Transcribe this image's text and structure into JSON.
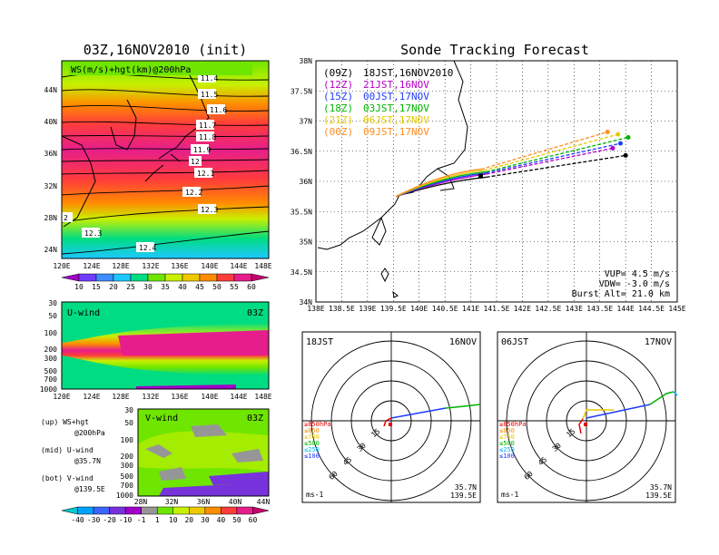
{
  "left_title": "03Z,16NOV2010 (init)",
  "right_title": "Sonde Tracking Forecast",
  "map_panel": {
    "label": "WS(m/s)+hgt(km)@200hPa",
    "lat_labels": [
      "44N",
      "40N",
      "36N",
      "32N",
      "28N",
      "24N"
    ],
    "lon_labels": [
      "120E",
      "124E",
      "128E",
      "132E",
      "136E",
      "140E",
      "144E",
      "148E"
    ],
    "contour_labels": [
      "11.4",
      "11.5",
      "11.6",
      "11.7",
      "11.8",
      "11.9",
      "12",
      "12.1",
      "12.2",
      "12.3",
      "12.3",
      "12.4",
      "2"
    ],
    "colorbar_labels": [
      "10",
      "15",
      "20",
      "25",
      "30",
      "35",
      "40",
      "45",
      "50",
      "55",
      "60"
    ],
    "colorbar_colors": [
      "#a000c8",
      "#6e3cff",
      "#3c8cff",
      "#1ec8ff",
      "#00dc82",
      "#6ee600",
      "#c8f000",
      "#f0c800",
      "#ff8c00",
      "#ff3c3c",
      "#e61e8c",
      "#c8006e"
    ]
  },
  "uwind_panel": {
    "label": "U-wind",
    "time": "03Z",
    "pressure_labels": [
      "30",
      "50",
      "100",
      "200",
      "300",
      "500",
      "700",
      "1000"
    ],
    "lon_labels": [
      "120E",
      "124E",
      "128E",
      "132E",
      "136E",
      "140E",
      "144E",
      "148E"
    ]
  },
  "vwind_panel": {
    "label": "V-wind",
    "time": "03Z",
    "pressure_labels": [
      "30",
      "50",
      "100",
      "200",
      "300",
      "500",
      "700",
      "1000"
    ],
    "lat_labels": [
      "28N",
      "32N",
      "36N",
      "40N",
      "44N"
    ]
  },
  "notes": [
    {
      "a": "(up) WS+hgt",
      "b": "@200hPa"
    },
    {
      "a": "(mid) U-wind",
      "b": "@35.7N"
    },
    {
      "a": "(bot) V-wind",
      "b": "@139.5E"
    }
  ],
  "bottom_colorbar": {
    "labels": [
      "-40",
      "-30",
      "-20",
      "-10",
      "-1",
      "1",
      "10",
      "20",
      "30",
      "40",
      "50",
      "60"
    ],
    "colors": [
      "#00c8c8",
      "#00a0ff",
      "#3c64ff",
      "#7832dc",
      "#a000c8",
      "#969696",
      "#6ee600",
      "#c8f000",
      "#f0c800",
      "#ff8c00",
      "#ff3c3c",
      "#e61e8c",
      "#c8006e"
    ]
  },
  "track_panel": {
    "lat_labels": [
      "38N",
      "37.5N",
      "37N",
      "36.5N",
      "36N",
      "35.5N",
      "35N",
      "34.5N",
      "34N"
    ],
    "lon_labels": [
      "138E",
      "138.5E",
      "139E",
      "139.5E",
      "140E",
      "140.5E",
      "141E",
      "141.5E",
      "142E",
      "142.5E",
      "143E",
      "143.5E",
      "144E",
      "144.5E",
      "145E"
    ],
    "legend": [
      {
        "code": "(09Z)",
        "time": "18JST,16NOV2010",
        "color": "#000000"
      },
      {
        "code": "(12Z)",
        "time": "21JST,16NOV",
        "color": "#b400c8"
      },
      {
        "code": "(15Z)",
        "time": "00JST,17NOV",
        "color": "#1e3cff"
      },
      {
        "code": "(18Z)",
        "time": "03JST,17NOV",
        "color": "#00b400"
      },
      {
        "code": "(21Z)",
        "time": "06JST,17NOV",
        "color": "#e6c800"
      },
      {
        "code": "(00Z)",
        "time": "09JST,17NOV",
        "color": "#ff8c1e"
      }
    ],
    "params": [
      "VUP= 4.5 m/s",
      "VDW= -3.0 m/s",
      "Burst Alt= 21.0 km"
    ]
  },
  "polar_left": {
    "time": "18JST",
    "date": "16NOV",
    "ring_labels": [
      "15",
      "30",
      "45",
      "60"
    ],
    "levels": [
      "≥850hPa",
      "≤850",
      "≤700",
      "≤500",
      "≤250",
      "≤100"
    ],
    "level_colors": [
      "#e60000",
      "#ff8c00",
      "#e6c800",
      "#00b400",
      "#00b4ff",
      "#1e3cff"
    ],
    "unit": "ms-1",
    "loc_lat": "35.7N",
    "loc_lon": "139.5E"
  },
  "polar_right": {
    "time": "06JST",
    "date": "17NOV",
    "ring_labels": [
      "15",
      "30",
      "45",
      "60"
    ],
    "levels": [
      "≥850hPa",
      "≤850",
      "≤700",
      "≤500",
      "≤250",
      "≤100"
    ],
    "level_colors": [
      "#e60000",
      "#ff8c00",
      "#e6c800",
      "#00b400",
      "#00b4ff",
      "#1e3cff"
    ],
    "unit": "ms-1",
    "loc_lat": "35.7N",
    "loc_lon": "139.5E"
  }
}
